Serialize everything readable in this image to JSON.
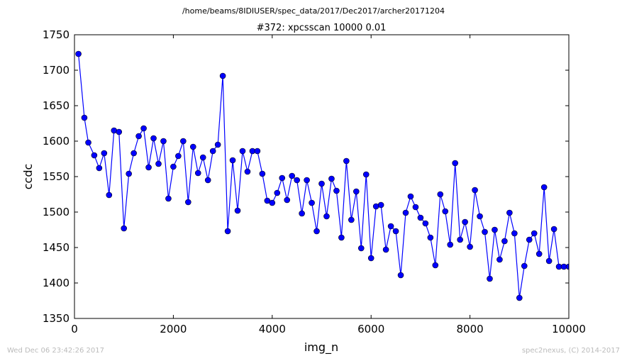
{
  "header": {
    "path": "/home/beams/8IDIUSER/spec_data/2017/Dec2017/archer20171204"
  },
  "footer": {
    "left": "Wed Dec 06 23:42:26 2017",
    "right": "spec2nexus, (C) 2014-2017"
  },
  "colors": {
    "series": "#0000ff",
    "text": "#000000",
    "footer": "#bbbbbb"
  },
  "chart_data": {
    "type": "line",
    "title": "#372: xpcsscan 10000 0.01",
    "xlabel": "img_n",
    "ylabel": "ccdc",
    "xlim": [
      0,
      10000
    ],
    "ylim": [
      1350,
      1750
    ],
    "xticks": [
      "0",
      "2000",
      "4000",
      "6000",
      "8000",
      "10000"
    ],
    "yticks": [
      "1350",
      "1400",
      "1450",
      "1500",
      "1550",
      "1600",
      "1650",
      "1700",
      "1750"
    ],
    "grid": false,
    "legend": "none",
    "marker": "circle",
    "series": [
      {
        "x": [
          80,
          200,
          280,
          400,
          500,
          600,
          700,
          800,
          900,
          1000,
          1100,
          1200,
          1300,
          1400,
          1500,
          1600,
          1700,
          1800,
          1900,
          2000,
          2100,
          2200,
          2300,
          2400,
          2500,
          2600,
          2700,
          2800,
          2900,
          3000,
          3100,
          3200,
          3300,
          3400,
          3500,
          3600,
          3700,
          3800,
          3900,
          4000,
          4100,
          4200,
          4300,
          4400,
          4500,
          4600,
          4700,
          4800,
          4900,
          5000,
          5100,
          5200,
          5300,
          5400,
          5500,
          5600,
          5700,
          5800,
          5900,
          6000,
          6100,
          6200,
          6300,
          6400,
          6500,
          6600,
          6700,
          6800,
          6900,
          7000,
          7100,
          7200,
          7300,
          7400,
          7500,
          7600,
          7700,
          7800,
          7900,
          8000,
          8100,
          8200,
          8300,
          8400,
          8500,
          8600,
          8700,
          8800,
          8900,
          9000,
          9100,
          9200,
          9300,
          9400,
          9500,
          9600,
          9700,
          9800,
          9900,
          10000
        ],
        "y": [
          1723,
          1633,
          1598,
          1580,
          1562,
          1583,
          1524,
          1615,
          1613,
          1477,
          1554,
          1583,
          1607,
          1618,
          1563,
          1604,
          1568,
          1600,
          1519,
          1564,
          1579,
          1600,
          1514,
          1592,
          1555,
          1577,
          1545,
          1586,
          1595,
          1692,
          1473,
          1573,
          1502,
          1586,
          1557,
          1586,
          1586,
          1554,
          1516,
          1513,
          1527,
          1548,
          1517,
          1551,
          1545,
          1498,
          1545,
          1513,
          1473,
          1540,
          1494,
          1547,
          1530,
          1464,
          1572,
          1489,
          1529,
          1449,
          1553,
          1435,
          1508,
          1510,
          1447,
          1480,
          1473,
          1411,
          1499,
          1522,
          1507,
          1492,
          1484,
          1464,
          1425,
          1525,
          1501,
          1454,
          1569,
          1461,
          1486,
          1451,
          1531,
          1494,
          1472,
          1406,
          1475,
          1433,
          1459,
          1499,
          1470,
          1379,
          1424,
          1461,
          1470,
          1441,
          1535,
          1431,
          1476,
          1423,
          1423,
          1423
        ]
      }
    ]
  }
}
